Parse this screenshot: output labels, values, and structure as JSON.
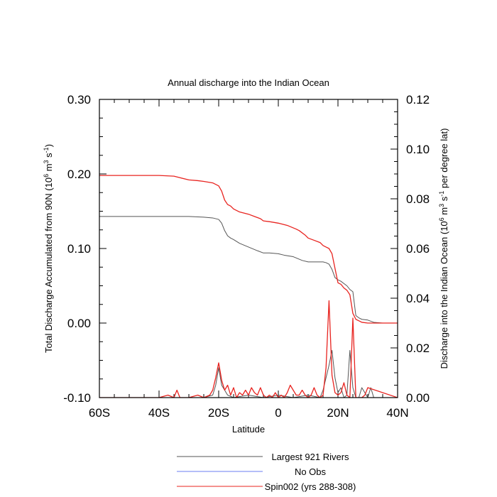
{
  "chart_data": {
    "type": "line",
    "title": "Annual discharge into the Indian Ocean",
    "xlabel": "Latitude",
    "ylabel_left": "Total Discharge Accumulated from 90N (10^6 m^3 s^-1)",
    "ylabel_right": "Discharge into the Indian Ocean (10^6 m^3 s^-1 per degree lat)",
    "xlim": [
      -60,
      40
    ],
    "ylim_left": [
      -0.1,
      0.3
    ],
    "ylim_right": [
      0.0,
      0.12
    ],
    "x_ticks": [
      -60,
      -40,
      -20,
      0,
      20,
      40
    ],
    "x_tick_labels": [
      "60S",
      "40S",
      "20S",
      "0",
      "20N",
      "40N"
    ],
    "y_ticks_left": [
      -0.1,
      0.0,
      0.1,
      0.2,
      0.3
    ],
    "y_tick_labels_left": [
      "-0.10",
      "0.00",
      "0.10",
      "0.20",
      "0.30"
    ],
    "y_ticks_right": [
      0.0,
      0.02,
      0.04,
      0.06,
      0.08,
      0.1,
      0.12
    ],
    "y_tick_labels_right": [
      "0.00",
      "0.02",
      "0.04",
      "0.06",
      "0.08",
      "0.10",
      "0.12"
    ],
    "grid": false,
    "legend_position": "bottom",
    "series": [
      {
        "name": "Largest 921 Rivers",
        "color": "#555555",
        "axis": "left",
        "x": [
          -60,
          -40,
          -35,
          -30,
          -25,
          -22,
          -20,
          -19,
          -18,
          -17,
          -16,
          -15,
          -13,
          -10,
          -7,
          -5,
          -3,
          0,
          2,
          5,
          8,
          10,
          15,
          16,
          17,
          18,
          19,
          20,
          21,
          22,
          23,
          24,
          25,
          26,
          27,
          28,
          30,
          32,
          35,
          40
        ],
        "y": [
          0.143,
          0.143,
          0.143,
          0.143,
          0.142,
          0.141,
          0.139,
          0.134,
          0.124,
          0.117,
          0.114,
          0.112,
          0.107,
          0.102,
          0.097,
          0.094,
          0.094,
          0.093,
          0.091,
          0.089,
          0.084,
          0.082,
          0.082,
          0.081,
          0.079,
          0.072,
          0.061,
          0.058,
          0.056,
          0.053,
          0.05,
          0.045,
          0.042,
          0.01,
          0.007,
          0.005,
          0.004,
          0.001,
          0.0,
          0.0
        ]
      },
      {
        "name": "No Obs",
        "color": "#6b7cf0",
        "axis": "left",
        "x": [],
        "y": []
      },
      {
        "name": "Spin002 (yrs 288-308)",
        "color": "#e8231f",
        "axis": "left",
        "x": [
          -60,
          -55,
          -45,
          -40,
          -35,
          -33,
          -30,
          -27,
          -25,
          -22,
          -21,
          -20,
          -19,
          -18,
          -17,
          -16,
          -15,
          -13,
          -10,
          -8,
          -6,
          -5,
          -3,
          0,
          3,
          6,
          7,
          9,
          10,
          12,
          14,
          15,
          16,
          17,
          18,
          20,
          21,
          22,
          23,
          24,
          25,
          26,
          27,
          28,
          30,
          40
        ],
        "y": [
          0.198,
          0.198,
          0.198,
          0.198,
          0.197,
          0.195,
          0.192,
          0.191,
          0.19,
          0.188,
          0.186,
          0.184,
          0.177,
          0.165,
          0.159,
          0.157,
          0.153,
          0.149,
          0.146,
          0.143,
          0.14,
          0.137,
          0.136,
          0.134,
          0.131,
          0.126,
          0.124,
          0.118,
          0.114,
          0.111,
          0.108,
          0.104,
          0.102,
          0.1,
          0.093,
          0.054,
          0.052,
          0.047,
          0.044,
          0.038,
          0.013,
          0.005,
          0.003,
          0.001,
          0.0,
          0.0
        ]
      },
      {
        "name": "Largest 921 Rivers",
        "color": "#555555",
        "axis": "right",
        "x": [
          -60,
          -25,
          -22,
          -21,
          -20,
          -19,
          -18,
          -17,
          -15,
          -10,
          -5,
          0,
          5,
          10,
          14,
          15,
          16,
          17,
          18,
          19,
          20,
          21,
          22,
          23,
          24,
          25,
          26,
          27,
          28,
          30,
          31,
          32,
          40
        ],
        "y": [
          0.0,
          0.0,
          0.001,
          0.005,
          0.012,
          0.005,
          0.003,
          0.001,
          0.0,
          0.001,
          0.0,
          0.001,
          0.0,
          0.001,
          0.0,
          0.003,
          0.008,
          0.013,
          0.019,
          0.008,
          0.002,
          0.004,
          0.0,
          0.001,
          0.019,
          0.004,
          0.0,
          0.0,
          0.004,
          0.0,
          0.004,
          0.0,
          0.0
        ]
      },
      {
        "name": "Spin002 (yrs 288-308)",
        "color": "#e8231f",
        "axis": "right",
        "x": [
          -60,
          -45,
          -40,
          -37,
          -35,
          -34,
          -33,
          -30,
          -27,
          -25,
          -23,
          -22,
          -21,
          -20,
          -19,
          -18,
          -17,
          -16,
          -15,
          -14,
          -13,
          -12,
          -11,
          -10,
          -9,
          -8,
          -7,
          -6,
          -5,
          -4,
          -3,
          -2,
          -1,
          0,
          1,
          2,
          3,
          4,
          5,
          6,
          7,
          8,
          9,
          10,
          11,
          12,
          13,
          14,
          15,
          16,
          17,
          18,
          19,
          20,
          21,
          22,
          23,
          24,
          25,
          26,
          27,
          28,
          29,
          30,
          40
        ],
        "y": [
          0.0,
          0.0,
          0.0,
          0.001,
          0.0,
          0.003,
          0.0,
          0.0,
          0.001,
          0.0,
          0.001,
          0.003,
          0.008,
          0.014,
          0.007,
          0.003,
          0.005,
          0.001,
          0.004,
          0.0,
          0.002,
          0.001,
          0.003,
          0.001,
          0.004,
          0.002,
          0.001,
          0.004,
          0.001,
          0.0,
          0.001,
          0.0,
          0.002,
          0.0,
          0.001,
          0.0,
          0.002,
          0.005,
          0.003,
          0.001,
          0.001,
          0.003,
          0.001,
          0.0,
          0.001,
          0.004,
          0.001,
          0.0,
          0.001,
          0.012,
          0.039,
          0.009,
          0.002,
          0.001,
          0.002,
          0.006,
          0.001,
          0.0,
          0.032,
          0.0,
          0.0,
          0.0,
          0.001,
          0.004,
          0.0
        ]
      }
    ]
  },
  "legend": {
    "items": [
      {
        "label": "Largest 921 Rivers",
        "color": "#555555"
      },
      {
        "label": "No Obs",
        "color": "#6b7cf0"
      },
      {
        "label": "Spin002 (yrs 288-308)",
        "color": "#e8231f"
      }
    ]
  }
}
